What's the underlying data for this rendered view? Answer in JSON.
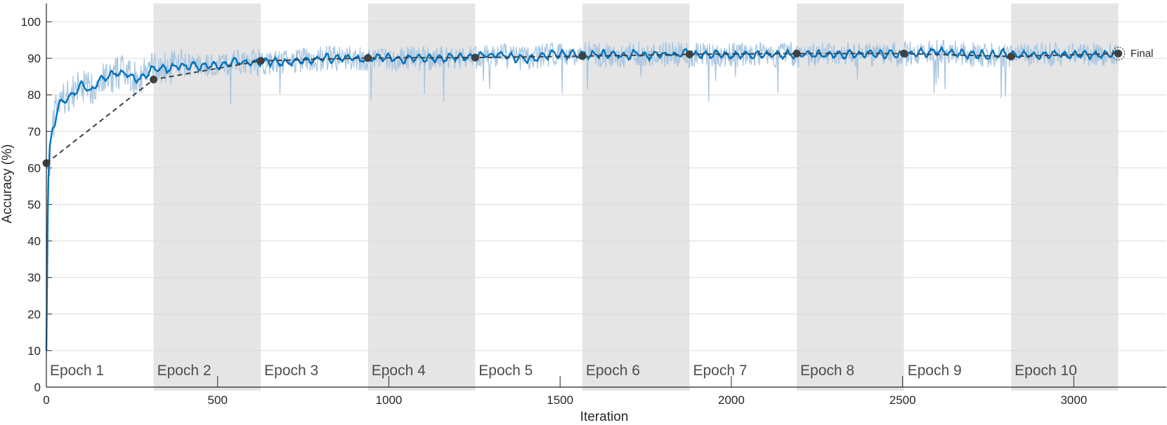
{
  "colors": {
    "smoothed": "#0072bd",
    "raw": "#a8c6e0",
    "validation": "#404040",
    "band": "#e5e5e5",
    "grid": "#dcdcdc",
    "axis": "#262626"
  },
  "chart_data": {
    "type": "line",
    "title": "",
    "xlabel": "Iteration",
    "ylabel": "Accuracy (%)",
    "xlim": [
      0,
      3270
    ],
    "ylim": [
      0,
      105
    ],
    "x_ticks": [
      0,
      500,
      1000,
      1500,
      2000,
      2500,
      3000
    ],
    "y_ticks": [
      0,
      10,
      20,
      30,
      40,
      50,
      60,
      70,
      80,
      90,
      100
    ],
    "y_grid": true,
    "epoch_labels": [
      "Epoch 1",
      "Epoch 2",
      "Epoch 3",
      "Epoch 4",
      "Epoch 5",
      "Epoch 6",
      "Epoch 7",
      "Epoch 8",
      "Epoch 9",
      "Epoch 10"
    ],
    "epoch_boundaries": [
      0,
      313,
      626,
      939,
      1252,
      1565,
      1878,
      2191,
      2504,
      2817,
      3130
    ],
    "shaded_epochs": [
      2,
      4,
      6,
      8,
      10
    ],
    "series": [
      {
        "kind": "training_raw",
        "x": [
          0,
          5,
          10,
          20,
          30,
          50,
          75,
          100,
          125,
          150,
          175,
          200,
          225,
          250,
          275,
          300,
          350,
          400,
          450,
          500,
          550,
          600,
          700,
          800,
          900,
          1000,
          1100,
          1200,
          1300,
          1400,
          1500,
          1600,
          1700,
          1800,
          1900,
          2000,
          2100,
          2200,
          2300,
          2400,
          2500,
          2600,
          2700,
          2800,
          2900,
          3000,
          3130
        ],
        "y": [
          10,
          55,
          66,
          72,
          77,
          79,
          80,
          83,
          81,
          84,
          85,
          86,
          86,
          84,
          85,
          87,
          87,
          88,
          88,
          88,
          89,
          89,
          89,
          90,
          90,
          90,
          90,
          90,
          91,
          90,
          91,
          91,
          91,
          91,
          91,
          91,
          91,
          91,
          91,
          91,
          91,
          92,
          91,
          91,
          91,
          91,
          91
        ]
      },
      {
        "kind": "training_smoothed",
        "x": [
          0,
          5,
          10,
          20,
          30,
          50,
          75,
          100,
          125,
          150,
          175,
          200,
          225,
          250,
          275,
          300,
          350,
          400,
          450,
          500,
          550,
          600,
          700,
          800,
          900,
          1000,
          1100,
          1200,
          1300,
          1400,
          1500,
          1600,
          1700,
          1800,
          1900,
          2000,
          2100,
          2200,
          2300,
          2400,
          2500,
          2600,
          2700,
          2800,
          2900,
          3000,
          3130
        ],
        "y": [
          10,
          55,
          66,
          72,
          77,
          79,
          80,
          83,
          81,
          84,
          85,
          86,
          86,
          84,
          85,
          87,
          87,
          88,
          88,
          88,
          89,
          89,
          89,
          90,
          90,
          90,
          90,
          90,
          91,
          90,
          91,
          91,
          91,
          91,
          91,
          91,
          91,
          91,
          91,
          91,
          91,
          92,
          91,
          91,
          91,
          91,
          91
        ]
      },
      {
        "kind": "validation",
        "x": [
          0,
          313,
          626,
          939,
          1252,
          1565,
          1878,
          2191,
          2504,
          2817,
          3130
        ],
        "y": [
          61.3,
          84.2,
          89.3,
          90.1,
          90.2,
          90.6,
          91.1,
          91.3,
          91.3,
          90.5,
          91.3
        ]
      }
    ],
    "final_label": "Final"
  }
}
